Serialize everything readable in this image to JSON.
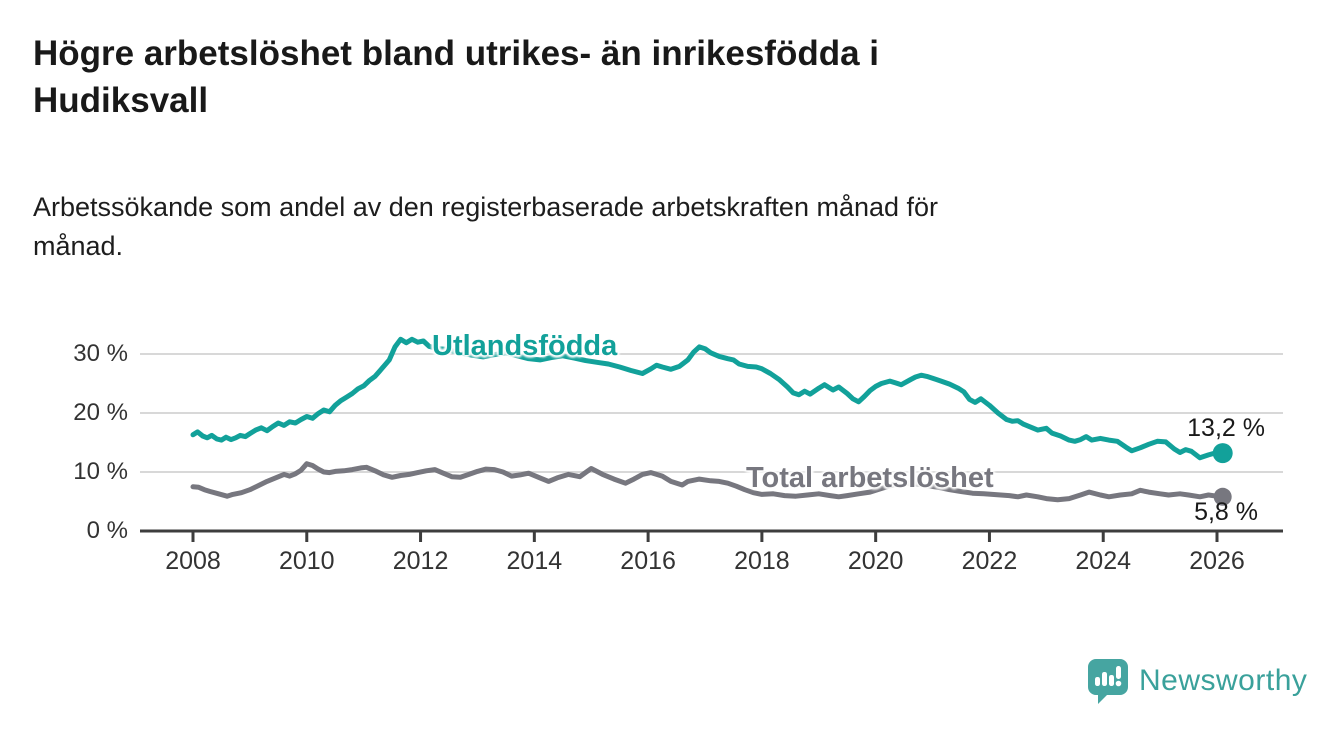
{
  "title_line1": "Högre arbetslöshet bland utrikes- än inrikesfödda i",
  "title_line2": "Hudiksvall",
  "subtitle_line1": "Arbetssökande som andel av den registerbaserade arbetskraften månad för",
  "subtitle_line2": "månad.",
  "footer": {
    "brand": "Newsworthy",
    "brand_color": "#3aa19b",
    "logo_icon": "bar-chart-speech-bubble-icon",
    "logo_color": "#46a5a1"
  },
  "chart_data": {
    "type": "line",
    "title": "",
    "xlabel": "",
    "ylabel": "",
    "x_axis": {
      "range": [
        2007.1,
        2027.2
      ],
      "ticks": [
        2008,
        2010,
        2012,
        2014,
        2016,
        2018,
        2020,
        2022,
        2024,
        2026
      ],
      "tick_labels": [
        "2008",
        "2010",
        "2012",
        "2014",
        "2016",
        "2018",
        "2020",
        "2022",
        "2024",
        "2026"
      ]
    },
    "y_axis": {
      "range": [
        0,
        33
      ],
      "ticks": [
        0,
        10,
        20,
        30
      ],
      "tick_labels": [
        "0 %",
        "10 %",
        "20 %",
        "30 %"
      ],
      "gridlines": [
        10,
        20,
        30
      ]
    },
    "grid": "horizontal",
    "legend_position": "inline-labels",
    "axis_color": "#3d3d3d",
    "gridline_color": "#d8d8d8",
    "series": [
      {
        "name": "Utlandsfödda",
        "color": "#12a19a",
        "end_label": "13,2 %",
        "end_value": 13.2,
        "points": [
          [
            2008.0,
            16.3
          ],
          [
            2008.08,
            16.8
          ],
          [
            2008.17,
            16.1
          ],
          [
            2008.25,
            15.8
          ],
          [
            2008.33,
            16.2
          ],
          [
            2008.42,
            15.6
          ],
          [
            2008.5,
            15.4
          ],
          [
            2008.58,
            15.9
          ],
          [
            2008.67,
            15.5
          ],
          [
            2008.75,
            15.8
          ],
          [
            2008.83,
            16.2
          ],
          [
            2008.92,
            16.0
          ],
          [
            2009.0,
            16.5
          ],
          [
            2009.1,
            17.1
          ],
          [
            2009.2,
            17.5
          ],
          [
            2009.3,
            17.0
          ],
          [
            2009.4,
            17.7
          ],
          [
            2009.5,
            18.3
          ],
          [
            2009.6,
            17.9
          ],
          [
            2009.7,
            18.5
          ],
          [
            2009.8,
            18.3
          ],
          [
            2009.9,
            18.9
          ],
          [
            2010.0,
            19.4
          ],
          [
            2010.1,
            19.1
          ],
          [
            2010.2,
            19.9
          ],
          [
            2010.3,
            20.5
          ],
          [
            2010.4,
            20.2
          ],
          [
            2010.5,
            21.3
          ],
          [
            2010.6,
            22.1
          ],
          [
            2010.7,
            22.7
          ],
          [
            2010.8,
            23.3
          ],
          [
            2010.9,
            24.1
          ],
          [
            2011.0,
            24.6
          ],
          [
            2011.1,
            25.5
          ],
          [
            2011.2,
            26.2
          ],
          [
            2011.3,
            27.3
          ],
          [
            2011.45,
            29.0
          ],
          [
            2011.55,
            31.2
          ],
          [
            2011.65,
            32.5
          ],
          [
            2011.75,
            31.9
          ],
          [
            2011.85,
            32.5
          ],
          [
            2011.95,
            32.0
          ],
          [
            2012.05,
            32.2
          ],
          [
            2012.15,
            31.3
          ],
          [
            2012.3,
            30.9
          ],
          [
            2012.45,
            30.8
          ],
          [
            2012.6,
            30.4
          ],
          [
            2012.75,
            30.1
          ],
          [
            2012.9,
            29.8
          ],
          [
            2013.1,
            29.5
          ],
          [
            2013.3,
            29.9
          ],
          [
            2013.5,
            30.2
          ],
          [
            2013.7,
            29.7
          ],
          [
            2013.9,
            29.2
          ],
          [
            2014.1,
            29.0
          ],
          [
            2014.3,
            29.4
          ],
          [
            2014.5,
            29.7
          ],
          [
            2014.7,
            29.3
          ],
          [
            2014.9,
            28.9
          ],
          [
            2015.1,
            28.6
          ],
          [
            2015.3,
            28.3
          ],
          [
            2015.5,
            27.8
          ],
          [
            2015.7,
            27.2
          ],
          [
            2015.9,
            26.7
          ],
          [
            2016.05,
            27.5
          ],
          [
            2016.15,
            28.1
          ],
          [
            2016.25,
            27.8
          ],
          [
            2016.4,
            27.4
          ],
          [
            2016.55,
            27.9
          ],
          [
            2016.7,
            29.0
          ],
          [
            2016.8,
            30.3
          ],
          [
            2016.9,
            31.2
          ],
          [
            2017.0,
            30.9
          ],
          [
            2017.1,
            30.2
          ],
          [
            2017.25,
            29.6
          ],
          [
            2017.4,
            29.2
          ],
          [
            2017.5,
            29.0
          ],
          [
            2017.6,
            28.3
          ],
          [
            2017.75,
            27.9
          ],
          [
            2017.9,
            27.8
          ],
          [
            2018.0,
            27.5
          ],
          [
            2018.15,
            26.7
          ],
          [
            2018.3,
            25.7
          ],
          [
            2018.45,
            24.4
          ],
          [
            2018.55,
            23.4
          ],
          [
            2018.65,
            23.1
          ],
          [
            2018.75,
            23.7
          ],
          [
            2018.85,
            23.2
          ],
          [
            2019.0,
            24.2
          ],
          [
            2019.1,
            24.8
          ],
          [
            2019.25,
            23.9
          ],
          [
            2019.35,
            24.4
          ],
          [
            2019.5,
            23.3
          ],
          [
            2019.6,
            22.4
          ],
          [
            2019.7,
            21.9
          ],
          [
            2019.8,
            22.8
          ],
          [
            2019.9,
            23.8
          ],
          [
            2020.0,
            24.5
          ],
          [
            2020.1,
            25.0
          ],
          [
            2020.25,
            25.4
          ],
          [
            2020.35,
            25.1
          ],
          [
            2020.45,
            24.8
          ],
          [
            2020.6,
            25.6
          ],
          [
            2020.7,
            26.1
          ],
          [
            2020.8,
            26.4
          ],
          [
            2020.9,
            26.2
          ],
          [
            2021.0,
            25.9
          ],
          [
            2021.15,
            25.4
          ],
          [
            2021.3,
            24.9
          ],
          [
            2021.45,
            24.2
          ],
          [
            2021.55,
            23.6
          ],
          [
            2021.65,
            22.3
          ],
          [
            2021.75,
            21.8
          ],
          [
            2021.85,
            22.4
          ],
          [
            2022.0,
            21.3
          ],
          [
            2022.15,
            20.0
          ],
          [
            2022.3,
            18.9
          ],
          [
            2022.4,
            18.6
          ],
          [
            2022.5,
            18.7
          ],
          [
            2022.6,
            18.1
          ],
          [
            2022.7,
            17.7
          ],
          [
            2022.85,
            17.1
          ],
          [
            2023.0,
            17.4
          ],
          [
            2023.1,
            16.6
          ],
          [
            2023.25,
            16.1
          ],
          [
            2023.4,
            15.4
          ],
          [
            2023.5,
            15.2
          ],
          [
            2023.6,
            15.5
          ],
          [
            2023.7,
            16.0
          ],
          [
            2023.8,
            15.4
          ],
          [
            2023.95,
            15.7
          ],
          [
            2024.1,
            15.4
          ],
          [
            2024.25,
            15.2
          ],
          [
            2024.4,
            14.2
          ],
          [
            2024.5,
            13.6
          ],
          [
            2024.65,
            14.1
          ],
          [
            2024.8,
            14.7
          ],
          [
            2024.95,
            15.2
          ],
          [
            2025.1,
            15.1
          ],
          [
            2025.25,
            13.9
          ],
          [
            2025.35,
            13.3
          ],
          [
            2025.45,
            13.8
          ],
          [
            2025.55,
            13.5
          ],
          [
            2025.7,
            12.4
          ],
          [
            2025.85,
            12.9
          ],
          [
            2026.0,
            13.3
          ],
          [
            2026.1,
            13.2
          ]
        ]
      },
      {
        "name": "Total arbetslöshet",
        "color": "#77777f",
        "end_label": "5,8 %",
        "end_value": 5.8,
        "points": [
          [
            2008.0,
            7.5
          ],
          [
            2008.1,
            7.4
          ],
          [
            2008.2,
            7.0
          ],
          [
            2008.3,
            6.7
          ],
          [
            2008.45,
            6.3
          ],
          [
            2008.6,
            5.9
          ],
          [
            2008.7,
            6.2
          ],
          [
            2008.85,
            6.5
          ],
          [
            2009.0,
            7.0
          ],
          [
            2009.15,
            7.7
          ],
          [
            2009.3,
            8.4
          ],
          [
            2009.45,
            9.0
          ],
          [
            2009.6,
            9.6
          ],
          [
            2009.7,
            9.3
          ],
          [
            2009.8,
            9.7
          ],
          [
            2009.9,
            10.3
          ],
          [
            2010.0,
            11.4
          ],
          [
            2010.1,
            11.1
          ],
          [
            2010.2,
            10.5
          ],
          [
            2010.3,
            10.0
          ],
          [
            2010.4,
            9.9
          ],
          [
            2010.5,
            10.1
          ],
          [
            2010.65,
            10.2
          ],
          [
            2010.8,
            10.4
          ],
          [
            2010.95,
            10.7
          ],
          [
            2011.05,
            10.8
          ],
          [
            2011.2,
            10.2
          ],
          [
            2011.35,
            9.5
          ],
          [
            2011.5,
            9.1
          ],
          [
            2011.65,
            9.4
          ],
          [
            2011.8,
            9.6
          ],
          [
            2011.95,
            9.9
          ],
          [
            2012.1,
            10.2
          ],
          [
            2012.25,
            10.4
          ],
          [
            2012.4,
            9.8
          ],
          [
            2012.55,
            9.2
          ],
          [
            2012.7,
            9.1
          ],
          [
            2012.85,
            9.6
          ],
          [
            2013.0,
            10.1
          ],
          [
            2013.15,
            10.5
          ],
          [
            2013.3,
            10.4
          ],
          [
            2013.45,
            10.0
          ],
          [
            2013.6,
            9.3
          ],
          [
            2013.75,
            9.5
          ],
          [
            2013.9,
            9.8
          ],
          [
            2014.1,
            9.0
          ],
          [
            2014.25,
            8.4
          ],
          [
            2014.4,
            9.0
          ],
          [
            2014.6,
            9.6
          ],
          [
            2014.8,
            9.2
          ],
          [
            2015.0,
            10.6
          ],
          [
            2015.2,
            9.6
          ],
          [
            2015.4,
            8.8
          ],
          [
            2015.6,
            8.1
          ],
          [
            2015.75,
            8.8
          ],
          [
            2015.9,
            9.6
          ],
          [
            2016.05,
            9.9
          ],
          [
            2016.25,
            9.3
          ],
          [
            2016.4,
            8.4
          ],
          [
            2016.6,
            7.8
          ],
          [
            2016.7,
            8.4
          ],
          [
            2016.9,
            8.8
          ],
          [
            2017.1,
            8.5
          ],
          [
            2017.25,
            8.4
          ],
          [
            2017.4,
            8.1
          ],
          [
            2017.55,
            7.6
          ],
          [
            2017.7,
            7.0
          ],
          [
            2017.85,
            6.5
          ],
          [
            2018.0,
            6.2
          ],
          [
            2018.2,
            6.3
          ],
          [
            2018.4,
            6.0
          ],
          [
            2018.6,
            5.9
          ],
          [
            2018.8,
            6.1
          ],
          [
            2019.0,
            6.3
          ],
          [
            2019.2,
            6.0
          ],
          [
            2019.35,
            5.8
          ],
          [
            2019.5,
            6.0
          ],
          [
            2019.7,
            6.3
          ],
          [
            2019.9,
            6.6
          ],
          [
            2020.1,
            7.2
          ],
          [
            2020.3,
            7.8
          ],
          [
            2020.5,
            8.2
          ],
          [
            2020.7,
            8.0
          ],
          [
            2020.9,
            7.7
          ],
          [
            2021.1,
            7.4
          ],
          [
            2021.3,
            7.0
          ],
          [
            2021.5,
            6.7
          ],
          [
            2021.7,
            6.4
          ],
          [
            2021.9,
            6.3
          ],
          [
            2022.05,
            6.2
          ],
          [
            2022.2,
            6.1
          ],
          [
            2022.35,
            6.0
          ],
          [
            2022.5,
            5.8
          ],
          [
            2022.65,
            6.1
          ],
          [
            2022.85,
            5.8
          ],
          [
            2023.0,
            5.5
          ],
          [
            2023.2,
            5.3
          ],
          [
            2023.4,
            5.5
          ],
          [
            2023.6,
            6.1
          ],
          [
            2023.75,
            6.6
          ],
          [
            2023.95,
            6.1
          ],
          [
            2024.1,
            5.8
          ],
          [
            2024.3,
            6.1
          ],
          [
            2024.5,
            6.3
          ],
          [
            2024.65,
            6.9
          ],
          [
            2024.8,
            6.6
          ],
          [
            2025.0,
            6.3
          ],
          [
            2025.15,
            6.1
          ],
          [
            2025.35,
            6.3
          ],
          [
            2025.5,
            6.1
          ],
          [
            2025.7,
            5.8
          ],
          [
            2025.85,
            6.1
          ],
          [
            2026.0,
            5.9
          ],
          [
            2026.1,
            5.8
          ]
        ]
      }
    ]
  }
}
